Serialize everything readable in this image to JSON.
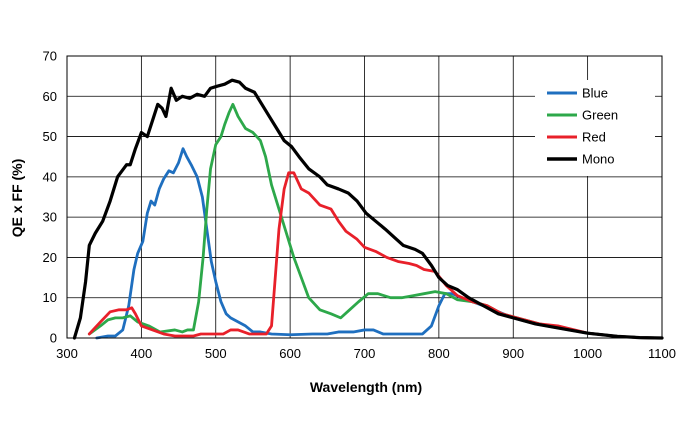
{
  "chart_data": {
    "type": "line",
    "xlabel": "Wavelength (nm)",
    "ylabel": "QE x FF (%)",
    "xlim": [
      300,
      1100
    ],
    "ylim": [
      0,
      70
    ],
    "xticks": [
      300,
      400,
      500,
      600,
      700,
      800,
      900,
      1000,
      1100
    ],
    "yticks": [
      0,
      10,
      20,
      30,
      40,
      50,
      60,
      70
    ],
    "grid": true,
    "legend_position": "top-right",
    "series": [
      {
        "name": "Blue",
        "color": "#1f6fbf",
        "points": [
          [
            340,
            0
          ],
          [
            355,
            0.5
          ],
          [
            365,
            0.5
          ],
          [
            375,
            2
          ],
          [
            383,
            8
          ],
          [
            390,
            17
          ],
          [
            395,
            21
          ],
          [
            402,
            24
          ],
          [
            408,
            31
          ],
          [
            413,
            34
          ],
          [
            418,
            33
          ],
          [
            424,
            37
          ],
          [
            430,
            39.5
          ],
          [
            437,
            41.5
          ],
          [
            443,
            41
          ],
          [
            450,
            43.5
          ],
          [
            456,
            47
          ],
          [
            461,
            45
          ],
          [
            467,
            43
          ],
          [
            475,
            40
          ],
          [
            482,
            35
          ],
          [
            488,
            27
          ],
          [
            494,
            19
          ],
          [
            500,
            14
          ],
          [
            507,
            9
          ],
          [
            514,
            6
          ],
          [
            520,
            5
          ],
          [
            530,
            4
          ],
          [
            540,
            3
          ],
          [
            550,
            1.5
          ],
          [
            560,
            1.5
          ],
          [
            575,
            1
          ],
          [
            600,
            0.8
          ],
          [
            630,
            1
          ],
          [
            650,
            1
          ],
          [
            665,
            1.5
          ],
          [
            685,
            1.5
          ],
          [
            700,
            2
          ],
          [
            712,
            2
          ],
          [
            725,
            1
          ],
          [
            745,
            1
          ],
          [
            765,
            1
          ],
          [
            778,
            1
          ],
          [
            790,
            3
          ],
          [
            800,
            8
          ],
          [
            808,
            11
          ],
          [
            818,
            11
          ],
          [
            830,
            10
          ],
          [
            845,
            9
          ],
          [
            860,
            8
          ],
          [
            880,
            6.5
          ],
          [
            900,
            5
          ],
          [
            930,
            3.5
          ],
          [
            960,
            2.5
          ],
          [
            1000,
            1.2
          ],
          [
            1040,
            0.4
          ],
          [
            1070,
            0.1
          ],
          [
            1100,
            0
          ]
        ]
      },
      {
        "name": "Green",
        "color": "#2da84a",
        "points": [
          [
            330,
            1
          ],
          [
            345,
            3
          ],
          [
            355,
            4.5
          ],
          [
            365,
            5
          ],
          [
            375,
            5
          ],
          [
            385,
            5.5
          ],
          [
            395,
            4
          ],
          [
            410,
            3
          ],
          [
            425,
            1.5
          ],
          [
            445,
            2
          ],
          [
            455,
            1.5
          ],
          [
            462,
            2
          ],
          [
            470,
            2
          ],
          [
            477,
            9
          ],
          [
            483,
            20
          ],
          [
            488,
            32
          ],
          [
            493,
            42
          ],
          [
            500,
            48
          ],
          [
            507,
            50
          ],
          [
            512,
            53
          ],
          [
            518,
            56
          ],
          [
            523,
            58
          ],
          [
            530,
            55
          ],
          [
            540,
            52
          ],
          [
            550,
            51
          ],
          [
            560,
            49
          ],
          [
            567,
            45
          ],
          [
            575,
            38
          ],
          [
            585,
            32
          ],
          [
            595,
            26
          ],
          [
            605,
            20
          ],
          [
            615,
            15
          ],
          [
            625,
            10
          ],
          [
            640,
            7
          ],
          [
            655,
            6
          ],
          [
            668,
            5
          ],
          [
            680,
            7
          ],
          [
            692,
            9
          ],
          [
            705,
            11
          ],
          [
            718,
            11
          ],
          [
            735,
            10
          ],
          [
            750,
            10
          ],
          [
            765,
            10.5
          ],
          [
            780,
            11
          ],
          [
            795,
            11.5
          ],
          [
            810,
            11
          ],
          [
            825,
            9.5
          ],
          [
            845,
            9
          ],
          [
            865,
            8
          ],
          [
            885,
            6
          ],
          [
            905,
            5
          ],
          [
            935,
            3.5
          ],
          [
            965,
            2.5
          ],
          [
            1000,
            1.2
          ],
          [
            1040,
            0.4
          ],
          [
            1070,
            0.1
          ],
          [
            1100,
            0
          ]
        ]
      },
      {
        "name": "Red",
        "color": "#e8202a",
        "points": [
          [
            330,
            1
          ],
          [
            345,
            4
          ],
          [
            358,
            6.5
          ],
          [
            370,
            7
          ],
          [
            380,
            7
          ],
          [
            387,
            7.5
          ],
          [
            392,
            6
          ],
          [
            400,
            3
          ],
          [
            415,
            2
          ],
          [
            430,
            1
          ],
          [
            445,
            0.5
          ],
          [
            460,
            0.5
          ],
          [
            470,
            0.5
          ],
          [
            480,
            1
          ],
          [
            500,
            1
          ],
          [
            510,
            1
          ],
          [
            520,
            2
          ],
          [
            530,
            2
          ],
          [
            545,
            1
          ],
          [
            558,
            1
          ],
          [
            568,
            1
          ],
          [
            575,
            3
          ],
          [
            580,
            15
          ],
          [
            585,
            27
          ],
          [
            592,
            37
          ],
          [
            598,
            41
          ],
          [
            605,
            41
          ],
          [
            615,
            37
          ],
          [
            625,
            36
          ],
          [
            640,
            33
          ],
          [
            655,
            32
          ],
          [
            665,
            29
          ],
          [
            675,
            26.5
          ],
          [
            690,
            24.5
          ],
          [
            700,
            22.5
          ],
          [
            715,
            21.5
          ],
          [
            730,
            20
          ],
          [
            745,
            19
          ],
          [
            760,
            18.5
          ],
          [
            770,
            18
          ],
          [
            780,
            17
          ],
          [
            795,
            16.5
          ],
          [
            810,
            13
          ],
          [
            825,
            10.5
          ],
          [
            845,
            9
          ],
          [
            865,
            8
          ],
          [
            885,
            6
          ],
          [
            905,
            5
          ],
          [
            935,
            3.5
          ],
          [
            960,
            3
          ],
          [
            1000,
            1.2
          ],
          [
            1040,
            0.4
          ],
          [
            1070,
            0.1
          ],
          [
            1100,
            0
          ]
        ]
      },
      {
        "name": "Mono",
        "color": "#000000",
        "points": [
          [
            310,
            0
          ],
          [
            318,
            5
          ],
          [
            325,
            14
          ],
          [
            330,
            23
          ],
          [
            338,
            26
          ],
          [
            348,
            29
          ],
          [
            358,
            34
          ],
          [
            368,
            40
          ],
          [
            380,
            43
          ],
          [
            385,
            43
          ],
          [
            392,
            47
          ],
          [
            400,
            51
          ],
          [
            408,
            50
          ],
          [
            415,
            54
          ],
          [
            422,
            58
          ],
          [
            428,
            57
          ],
          [
            433,
            55
          ],
          [
            440,
            62
          ],
          [
            447,
            59
          ],
          [
            455,
            60
          ],
          [
            465,
            59.5
          ],
          [
            475,
            60.5
          ],
          [
            485,
            60
          ],
          [
            493,
            62
          ],
          [
            502,
            62.5
          ],
          [
            512,
            63
          ],
          [
            522,
            64
          ],
          [
            532,
            63.5
          ],
          [
            540,
            62
          ],
          [
            552,
            61
          ],
          [
            562,
            58
          ],
          [
            572,
            55
          ],
          [
            582,
            52
          ],
          [
            592,
            49
          ],
          [
            602,
            47.5
          ],
          [
            612,
            45
          ],
          [
            625,
            42
          ],
          [
            640,
            40
          ],
          [
            650,
            38
          ],
          [
            665,
            37
          ],
          [
            678,
            36
          ],
          [
            690,
            34
          ],
          [
            702,
            31
          ],
          [
            715,
            29
          ],
          [
            728,
            27
          ],
          [
            740,
            25
          ],
          [
            752,
            23
          ],
          [
            768,
            22
          ],
          [
            778,
            21
          ],
          [
            790,
            18
          ],
          [
            800,
            15
          ],
          [
            812,
            13
          ],
          [
            825,
            12
          ],
          [
            840,
            10
          ],
          [
            860,
            8
          ],
          [
            880,
            6
          ],
          [
            900,
            5
          ],
          [
            930,
            3.5
          ],
          [
            960,
            2.5
          ],
          [
            1000,
            1.2
          ],
          [
            1040,
            0.4
          ],
          [
            1070,
            0.1
          ],
          [
            1100,
            0
          ]
        ]
      }
    ]
  }
}
